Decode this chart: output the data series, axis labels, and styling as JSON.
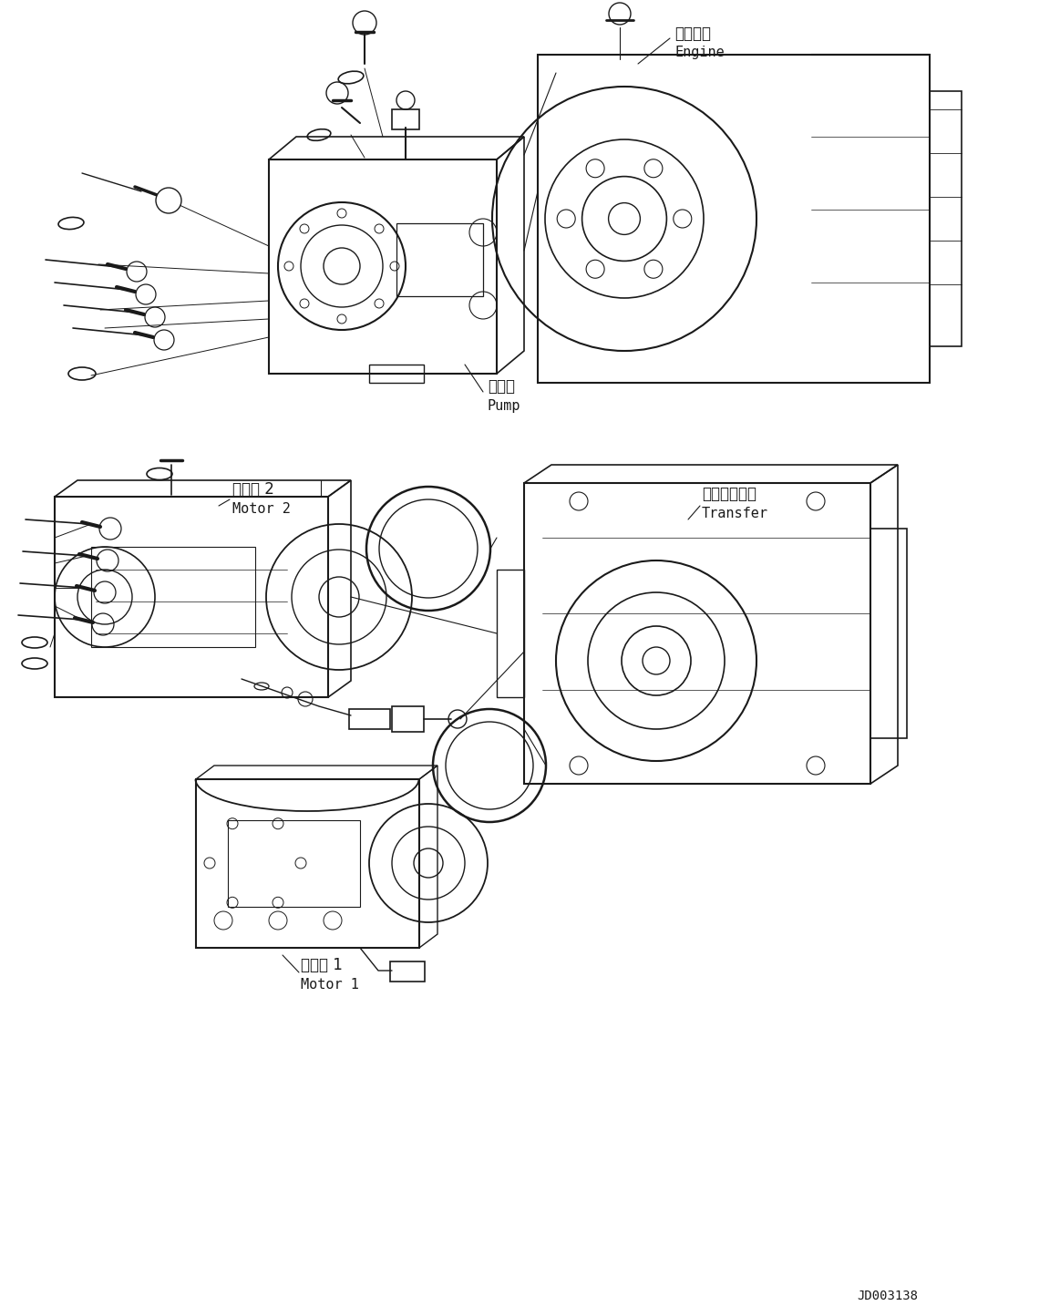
{
  "bg_color": "#ffffff",
  "fig_width": 11.63,
  "fig_height": 14.44,
  "dpi": 100,
  "labels": {
    "engine_jp": "エンジン",
    "engine_en": "Engine",
    "pump_jp": "ポンプ",
    "pump_en": "Pump",
    "motor2_jp": "モータ 2",
    "motor2_en": "Motor 2",
    "transfer_jp": "トランスファ",
    "transfer_en": "Transfer",
    "motor1_jp": "モータ 1",
    "motor1_en": "Motor 1",
    "doc_id": "JD003138"
  }
}
